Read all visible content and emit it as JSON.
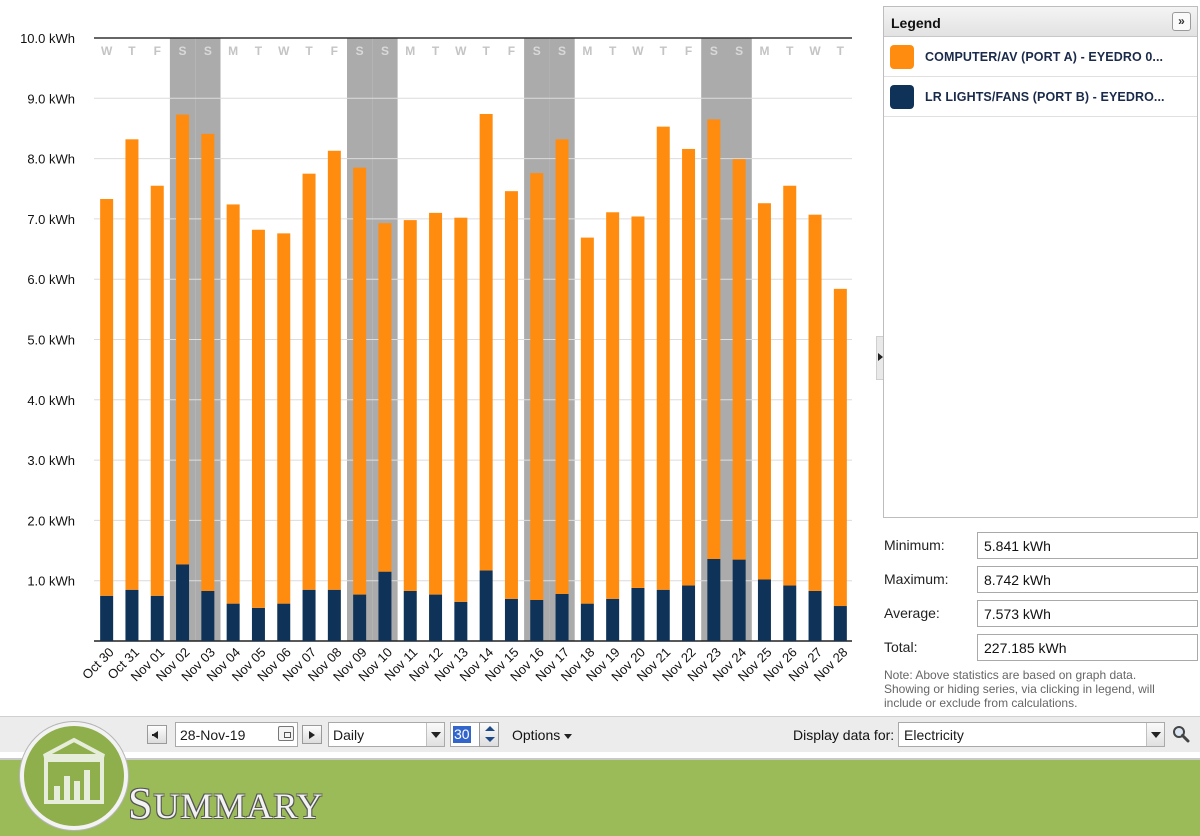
{
  "chart_data": {
    "type": "bar",
    "stacked": true,
    "ylim": [
      0,
      10
    ],
    "yticks": [
      "10.0 kWh",
      "9.0 kWh",
      "8.0 kWh",
      "7.0 kWh",
      "6.0 kWh",
      "5.0 kWh",
      "4.0 kWh",
      "3.0 kWh",
      "2.0 kWh",
      "1.0 kWh"
    ],
    "grid": true,
    "categories": [
      "Oct 30",
      "Oct 31",
      "Nov 01",
      "Nov 02",
      "Nov 03",
      "Nov 04",
      "Nov 05",
      "Nov 06",
      "Nov 07",
      "Nov 08",
      "Nov 09",
      "Nov 10",
      "Nov 11",
      "Nov 12",
      "Nov 13",
      "Nov 14",
      "Nov 15",
      "Nov 16",
      "Nov 17",
      "Nov 18",
      "Nov 19",
      "Nov 20",
      "Nov 21",
      "Nov 22",
      "Nov 23",
      "Nov 24",
      "Nov 25",
      "Nov 26",
      "Nov 27",
      "Nov 28"
    ],
    "weekdays": [
      "W",
      "T",
      "F",
      "S",
      "S",
      "M",
      "T",
      "W",
      "T",
      "F",
      "S",
      "S",
      "M",
      "T",
      "W",
      "T",
      "F",
      "S",
      "S",
      "M",
      "T",
      "W",
      "T",
      "F",
      "S",
      "S",
      "M",
      "T",
      "W",
      "T"
    ],
    "weekend_indexes": [
      3,
      4,
      10,
      11,
      17,
      18,
      24,
      25
    ],
    "series": [
      {
        "name": "LR LIGHTS/FANS (PORT B) - EYEDRO 0...",
        "color": "#0f3358",
        "values": [
          0.75,
          0.85,
          0.75,
          1.27,
          0.83,
          0.62,
          0.55,
          0.62,
          0.85,
          0.85,
          0.77,
          1.15,
          0.83,
          0.77,
          0.65,
          1.17,
          0.7,
          0.68,
          0.78,
          0.62,
          0.7,
          0.88,
          0.85,
          0.92,
          1.36,
          1.35,
          1.02,
          0.92,
          0.83,
          0.58
        ]
      },
      {
        "name": "COMPUTER/AV (PORT A) - EYEDRO 0...",
        "color": "#ff8c0f",
        "values": [
          6.58,
          7.47,
          6.8,
          7.46,
          7.58,
          6.62,
          6.27,
          6.14,
          6.9,
          7.28,
          7.08,
          5.78,
          6.15,
          6.33,
          6.37,
          7.57,
          6.76,
          7.08,
          7.54,
          6.07,
          6.41,
          6.16,
          7.68,
          7.24,
          7.29,
          6.64,
          6.24,
          6.63,
          6.24,
          5.26
        ]
      }
    ]
  },
  "legend": {
    "title": "Legend",
    "collapse_symbol": "»",
    "items": [
      {
        "label": "COMPUTER/AV (PORT A) - EYEDRO 0...",
        "color": "#ff8c0f"
      },
      {
        "label": "LR LIGHTS/FANS (PORT B) - EYEDRO...",
        "color": "#0f3358"
      }
    ]
  },
  "stats": {
    "minimum_label": "Minimum:",
    "minimum_value": "5.841 kWh",
    "maximum_label": "Maximum:",
    "maximum_value": "8.742 kWh",
    "average_label": "Average:",
    "average_value": "7.573 kWh",
    "total_label": "Total:",
    "total_value": "227.185 kWh",
    "note": "Note: Above statistics are based on graph data. Showing or hiding series, via clicking in legend, will include or exclude from calculations."
  },
  "toolbar": {
    "date_value": "28-Nov-19",
    "period_value": "Daily",
    "count_value": "30",
    "options_label": "Options",
    "display_label": "Display data for:",
    "type_value": "Electricity"
  },
  "banner": {
    "title_first": "S",
    "title_rest": "UMMARY",
    "background": "#9bbb59"
  }
}
